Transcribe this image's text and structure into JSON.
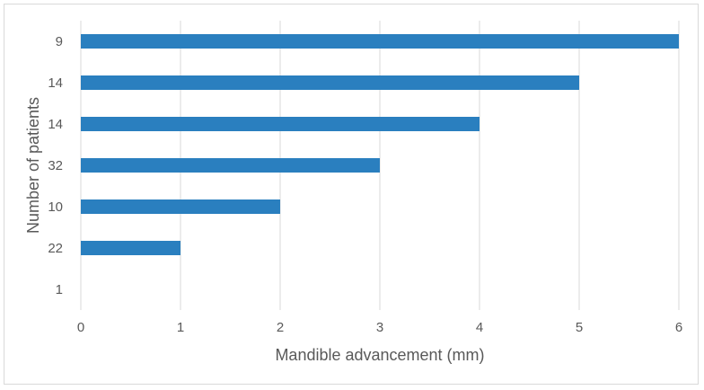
{
  "chart_data": {
    "type": "bar",
    "orientation": "horizontal",
    "categories": [
      "9",
      "14",
      "14",
      "32",
      "10",
      "22",
      "1"
    ],
    "values": [
      6,
      5,
      4,
      3,
      2,
      1,
      0
    ],
    "xlabel": "Mandible advancement (mm)",
    "ylabel": "Number of patients",
    "xlim": [
      0,
      6
    ],
    "xticks": [
      0,
      1,
      2,
      3,
      4,
      5,
      6
    ],
    "grid": "vertical",
    "legend": "none",
    "bar_color": "#2a7fbf",
    "grid_color": "#d9d9d9"
  }
}
